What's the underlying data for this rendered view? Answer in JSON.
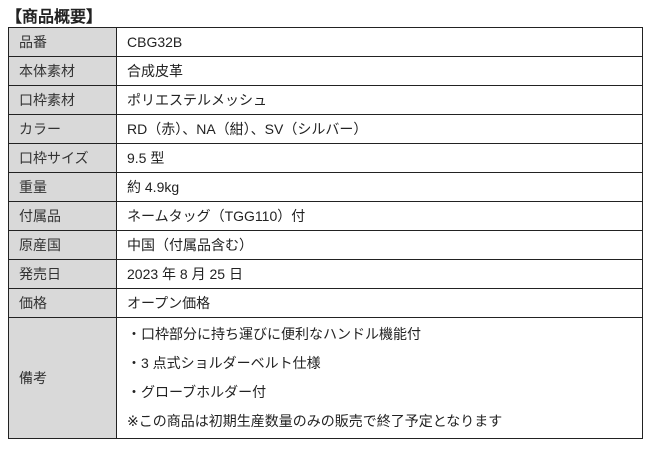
{
  "title": "【商品概要】",
  "rows": [
    {
      "label": "品番",
      "value": "CBG32B"
    },
    {
      "label": "本体素材",
      "value": "合成皮革"
    },
    {
      "label": "口枠素材",
      "value": "ポリエステルメッシュ"
    },
    {
      "label": "カラー",
      "value": "RD（赤）、NA（紺）、SV（シルバー）"
    },
    {
      "label": "口枠サイズ",
      "value": "9.5 型"
    },
    {
      "label": "重量",
      "value": "約 4.9kg"
    },
    {
      "label": "付属品",
      "value": "ネームタッグ（TGG110）付"
    },
    {
      "label": "原産国",
      "value": "中国（付属品含む）"
    },
    {
      "label": "発売日",
      "value": "2023 年 8 月 25 日"
    },
    {
      "label": "価格",
      "value": "オープン価格"
    }
  ],
  "notes": {
    "label": "備考",
    "lines": [
      "・口枠部分に持ち運びに便利なハンドル機能付",
      "・3 点式ショルダーベルト仕様",
      "・グローブホルダー付",
      "※この商品は初期生産数量のみの販売で終了予定となります"
    ]
  }
}
